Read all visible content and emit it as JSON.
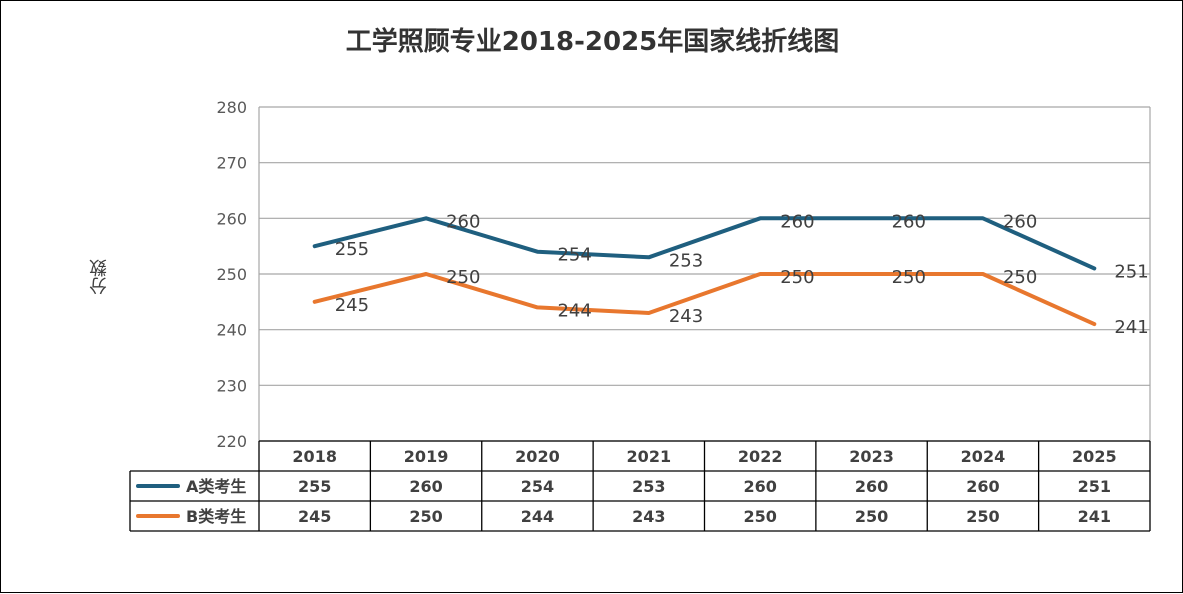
{
  "chart_data": {
    "type": "line",
    "title": "工学照顾专业2018-2025年国家线折线图",
    "xlabel": "",
    "ylabel": "分数",
    "categories": [
      "2018",
      "2019",
      "2020",
      "2021",
      "2022",
      "2023",
      "2024",
      "2025"
    ],
    "series": [
      {
        "name": "A类考生",
        "values": [
          255,
          260,
          254,
          253,
          260,
          260,
          260,
          251
        ],
        "color": "#1f5f7f"
      },
      {
        "name": "B类考生",
        "values": [
          245,
          250,
          244,
          243,
          250,
          250,
          250,
          241
        ],
        "color": "#e8772e"
      }
    ],
    "ylim": [
      220,
      280
    ],
    "yticks": [
      220,
      230,
      240,
      250,
      260,
      270,
      280
    ],
    "grid": true,
    "legend": "data-table",
    "data_table": true
  }
}
